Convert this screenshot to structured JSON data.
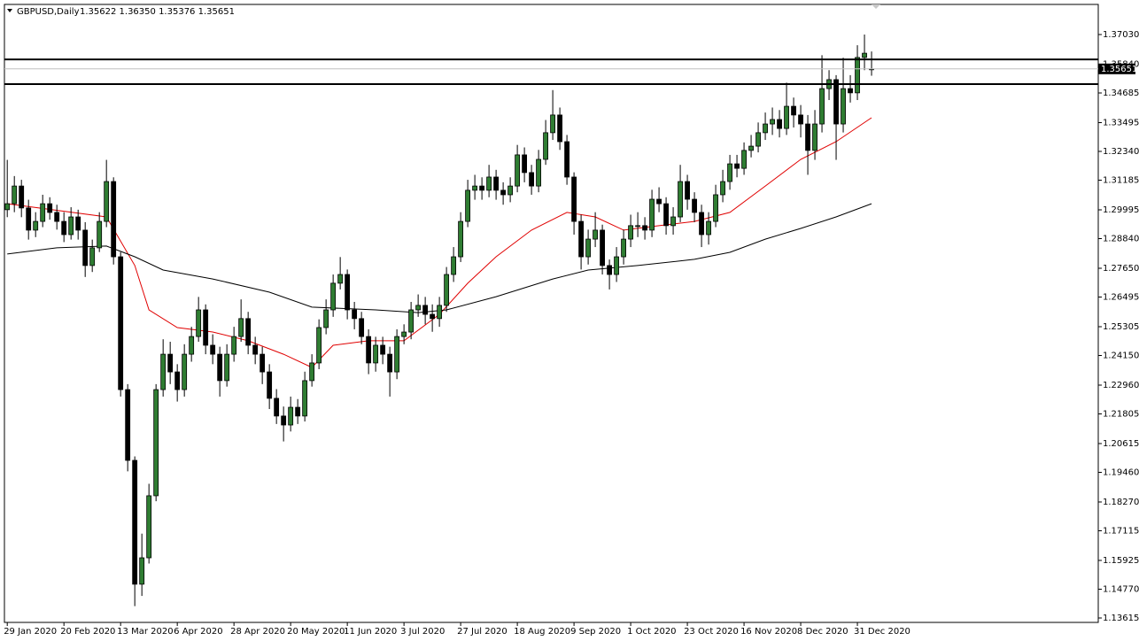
{
  "chart_data": {
    "type": "candlestick",
    "title": "GBPUSD,Daily",
    "ohlc_text": "1.35622 1.36350 1.35376 1.35651",
    "open": [
      1.3,
      1.3024,
      1.3095,
      1.3007,
      1.2918,
      1.2953,
      1.3024,
      1.2989,
      1.2953,
      1.29,
      1.2971,
      1.2918,
      1.2776,
      1.2847,
      1.2953,
      1.3113,
      1.2811,
      1.2278,
      1.1994,
      1.1497,
      1.1603,
      1.1852,
      1.2278,
      1.242,
      1.2349,
      1.2278,
      1.242,
      1.2491,
      1.2598,
      1.2456,
      1.242,
      1.2314,
      1.242,
      1.2491,
      1.2563,
      1.2456,
      1.242,
      1.2349,
      1.2243,
      1.2172,
      1.2136,
      1.2207,
      1.2172,
      1.2314,
      1.2385,
      1.2527,
      1.2598,
      1.2705,
      1.274,
      1.2598,
      1.2563,
      1.2491,
      1.2385,
      1.2456,
      1.242,
      1.2349,
      1.2491,
      1.2509,
      1.2598,
      1.2616,
      1.258,
      1.2563,
      1.2616,
      1.274,
      1.2811,
      1.2953,
      1.3078,
      1.3095,
      1.3078,
      1.3131,
      1.3078,
      1.306,
      1.3095,
      1.322,
      1.3149,
      1.3095,
      1.3202,
      1.3309,
      1.338,
      1.3273,
      1.3131,
      1.2953,
      1.2811,
      1.2882,
      1.2918,
      1.2776,
      1.274,
      1.2811,
      1.2882,
      1.2936,
      1.2936,
      1.2918,
      1.3042,
      1.3024,
      1.2936,
      1.2971,
      1.3113,
      1.3042,
      1.2989,
      1.29,
      1.2953,
      1.306,
      1.3113,
      1.3184,
      1.3166,
      1.3238,
      1.3255,
      1.3309,
      1.3344,
      1.3362,
      1.3326,
      1.3415,
      1.338,
      1.3344,
      1.3238,
      1.3344,
      1.3486,
      1.3522,
      1.3344,
      1.3486,
      1.3469,
      1.3611,
      1.35622
    ],
    "high": [
      1.32,
      1.3135,
      1.312,
      1.304,
      1.299,
      1.306,
      1.305,
      1.302,
      1.299,
      1.301,
      1.3,
      1.295,
      1.288,
      1.299,
      1.32,
      1.313,
      1.283,
      1.23,
      1.201,
      1.17,
      1.19,
      1.23,
      1.248,
      1.247,
      1.238,
      1.246,
      1.253,
      1.265,
      1.262,
      1.25,
      1.245,
      1.246,
      1.253,
      1.264,
      1.259,
      1.249,
      1.245,
      1.238,
      1.228,
      1.221,
      1.225,
      1.224,
      1.235,
      1.242,
      1.256,
      1.264,
      1.274,
      1.281,
      1.276,
      1.263,
      1.259,
      1.252,
      1.249,
      1.249,
      1.245,
      1.252,
      1.254,
      1.263,
      1.266,
      1.265,
      1.262,
      1.265,
      1.277,
      1.285,
      1.299,
      1.312,
      1.314,
      1.313,
      1.318,
      1.316,
      1.311,
      1.313,
      1.326,
      1.325,
      1.318,
      1.324,
      1.336,
      1.348,
      1.341,
      1.33,
      1.315,
      1.298,
      1.292,
      1.299,
      1.294,
      1.28,
      1.285,
      1.292,
      1.298,
      1.299,
      1.297,
      1.308,
      1.309,
      1.305,
      1.301,
      1.318,
      1.314,
      1.307,
      1.302,
      1.299,
      1.31,
      1.316,
      1.322,
      1.322,
      1.327,
      1.33,
      1.335,
      1.339,
      1.341,
      1.34,
      1.351,
      1.345,
      1.342,
      1.338,
      1.34,
      1.362,
      1.356,
      1.354,
      1.361,
      1.354,
      1.366,
      1.3703,
      1.3635
    ],
    "low": [
      1.297,
      1.299,
      1.297,
      1.288,
      1.289,
      1.293,
      1.296,
      1.292,
      1.287,
      1.288,
      1.288,
      1.273,
      1.275,
      1.283,
      1.293,
      1.278,
      1.225,
      1.195,
      1.1409,
      1.145,
      1.158,
      1.183,
      1.225,
      1.23,
      1.223,
      1.225,
      1.239,
      1.247,
      1.242,
      1.238,
      1.225,
      1.229,
      1.239,
      1.247,
      1.242,
      1.238,
      1.23,
      1.22,
      1.214,
      1.207,
      1.211,
      1.214,
      1.215,
      1.229,
      1.236,
      1.25,
      1.257,
      1.268,
      1.256,
      1.252,
      1.246,
      1.234,
      1.235,
      1.238,
      1.225,
      1.232,
      1.246,
      1.248,
      1.257,
      1.254,
      1.251,
      1.253,
      1.259,
      1.271,
      1.279,
      1.293,
      1.304,
      1.304,
      1.305,
      1.304,
      1.302,
      1.303,
      1.307,
      1.311,
      1.306,
      1.307,
      1.318,
      1.328,
      1.324,
      1.31,
      1.29,
      1.276,
      1.278,
      1.285,
      1.274,
      1.268,
      1.271,
      1.278,
      1.285,
      1.289,
      1.288,
      1.289,
      1.299,
      1.29,
      1.29,
      1.295,
      1.3,
      1.295,
      1.285,
      1.286,
      1.293,
      1.303,
      1.308,
      1.313,
      1.314,
      1.321,
      1.323,
      1.328,
      1.33,
      1.329,
      1.33,
      1.333,
      1.329,
      1.314,
      1.32,
      1.331,
      1.344,
      1.32,
      1.331,
      1.343,
      1.344,
      1.356,
      1.35376
    ],
    "close": [
      1.3024,
      1.3095,
      1.3007,
      1.2918,
      1.2953,
      1.3024,
      1.2989,
      1.2953,
      1.29,
      1.2971,
      1.2918,
      1.2776,
      1.2847,
      1.2953,
      1.3113,
      1.2811,
      1.2278,
      1.1994,
      1.1497,
      1.1603,
      1.1852,
      1.2278,
      1.242,
      1.2349,
      1.2278,
      1.242,
      1.2491,
      1.2598,
      1.2456,
      1.242,
      1.2314,
      1.242,
      1.2491,
      1.2563,
      1.2456,
      1.242,
      1.2349,
      1.2243,
      1.2172,
      1.2136,
      1.2207,
      1.2172,
      1.2314,
      1.2385,
      1.2527,
      1.2598,
      1.2705,
      1.274,
      1.2598,
      1.2563,
      1.2491,
      1.2385,
      1.2456,
      1.242,
      1.2349,
      1.2491,
      1.2509,
      1.2598,
      1.2616,
      1.258,
      1.2563,
      1.2616,
      1.274,
      1.2811,
      1.2953,
      1.3078,
      1.3095,
      1.3078,
      1.3131,
      1.3078,
      1.306,
      1.3095,
      1.322,
      1.3149,
      1.3095,
      1.3202,
      1.3309,
      1.338,
      1.3273,
      1.3131,
      1.2953,
      1.2811,
      1.2882,
      1.2918,
      1.2776,
      1.274,
      1.2811,
      1.2882,
      1.2936,
      1.2936,
      1.2918,
      1.3042,
      1.3024,
      1.2936,
      1.2971,
      1.3113,
      1.3042,
      1.2989,
      1.29,
      1.2953,
      1.306,
      1.3113,
      1.3184,
      1.3166,
      1.3238,
      1.3255,
      1.3309,
      1.3344,
      1.3362,
      1.3326,
      1.3415,
      1.338,
      1.3344,
      1.3238,
      1.3344,
      1.3486,
      1.3522,
      1.3344,
      1.3486,
      1.3469,
      1.3611,
      1.3628,
      1.35651
    ],
    "up_color": "#2f7d32",
    "down_color": "#000000",
    "ylim": [
      1.13437,
      1.38238
    ],
    "yticks": [
      {
        "value": 1.3703,
        "label": "1.37030"
      },
      {
        "value": 1.3584,
        "label": "1.35840"
      },
      1.34685,
      1.33495,
      {
        "value": 1.3234,
        "label": "1.32340"
      },
      1.31185,
      1.29995,
      {
        "value": 1.2884,
        "label": "1.28840"
      },
      {
        "value": 1.2765,
        "label": "1.27650"
      },
      1.26495,
      1.25305,
      {
        "value": 1.2415,
        "label": "1.24150"
      },
      {
        "value": 1.2296,
        "label": "1.22960"
      },
      1.21805,
      1.20615,
      {
        "value": 1.1946,
        "label": "1.19460"
      },
      {
        "value": 1.1827,
        "label": "1.18270"
      },
      1.17115,
      1.15925,
      {
        "value": 1.1477,
        "label": "1.14770"
      },
      1.13615
    ],
    "xlim": [
      -0.4,
      154
    ],
    "xticks": [
      {
        "value": 0,
        "label": "29 Jan 2020"
      },
      {
        "value": 8,
        "label": "20 Feb 2020"
      },
      {
        "value": 16,
        "label": "13 Mar 2020"
      },
      {
        "value": 24,
        "label": "6 Apr 2020"
      },
      {
        "value": 32,
        "label": "28 Apr 2020"
      },
      {
        "value": 40,
        "label": "20 May 2020"
      },
      {
        "value": 48,
        "label": "11 Jun 2020"
      },
      {
        "value": 56,
        "label": "3 Jul 2020"
      },
      {
        "value": 64,
        "label": "27 Jul 2020"
      },
      {
        "value": 72,
        "label": "18 Aug 2020"
      },
      {
        "value": 80,
        "label": "9 Sep 2020"
      },
      {
        "value": 88,
        "label": "1 Oct 2020"
      },
      {
        "value": 96,
        "label": "23 Oct 2020"
      },
      {
        "value": 104,
        "label": "16 Nov 2020"
      },
      {
        "value": 112,
        "label": "8 Dec 2020"
      },
      {
        "value": 120,
        "label": "31 Dec 2020"
      }
    ],
    "levels": [
      1.3603,
      1.3504
    ],
    "level_color": "#000000",
    "last_price": 1.35651,
    "moving_averages": [
      {
        "color": "#e00000",
        "x": [
          0,
          14,
          18,
          20,
          24,
          29,
          34,
          39,
          43,
          46,
          51,
          56,
          61,
          65,
          69,
          74,
          79,
          83,
          87,
          92,
          97,
          102,
          107,
          112,
          117,
          122
        ],
        "values": [
          1.3024,
          1.2971,
          1.2776,
          1.2598,
          1.2527,
          1.2509,
          1.2474,
          1.242,
          1.2367,
          1.2456,
          1.2474,
          1.2474,
          1.258,
          1.2705,
          1.2811,
          1.2918,
          1.2989,
          1.2971,
          1.2918,
          1.2936,
          1.2953,
          1.2989,
          1.3095,
          1.3202,
          1.3273,
          1.3369
        ]
      },
      {
        "color": "#000000",
        "x": [
          0,
          7,
          14,
          18,
          22,
          29,
          37,
          43,
          52,
          58,
          62,
          69,
          77,
          82,
          89,
          97,
          102,
          107,
          112,
          117,
          122
        ],
        "values": [
          1.2822,
          1.2847,
          1.2854,
          1.2811,
          1.2758,
          1.2722,
          1.2669,
          1.2609,
          1.2598,
          1.2587,
          1.2598,
          1.2651,
          1.2722,
          1.2758,
          1.2776,
          1.2801,
          1.2829,
          1.2882,
          1.2925,
          1.2971,
          1.3024
        ]
      }
    ]
  }
}
